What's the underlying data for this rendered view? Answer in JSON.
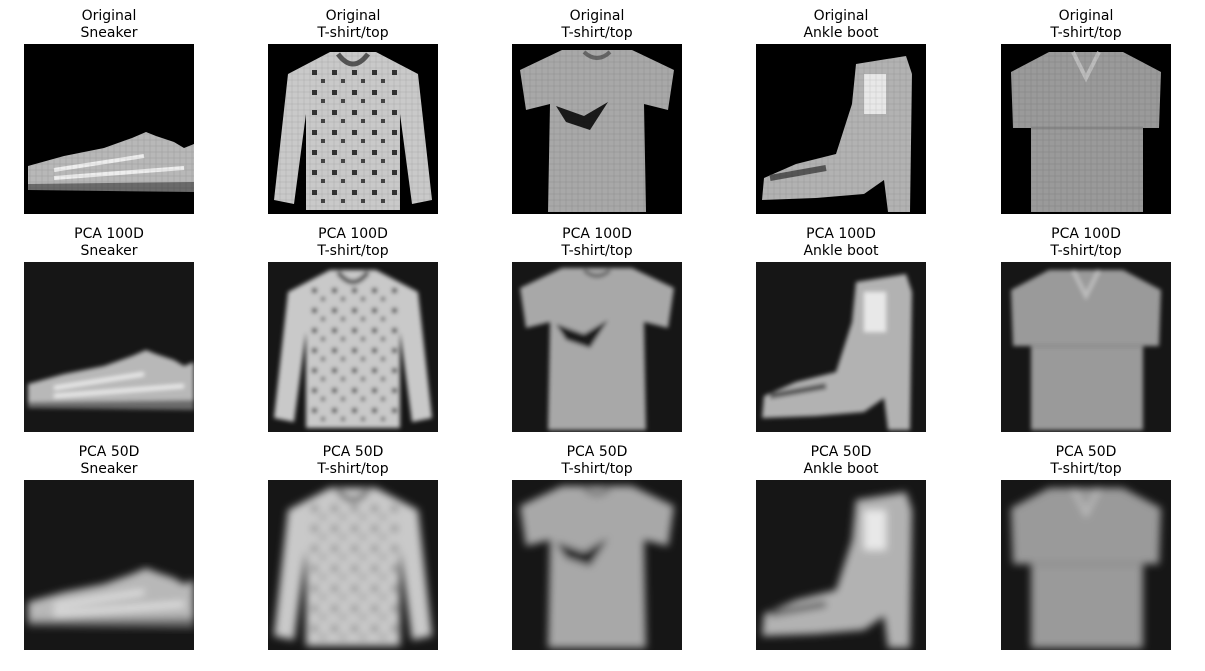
{
  "figure": {
    "rows": [
      {
        "method": "Original",
        "cells": [
          {
            "label": "Sneaker",
            "icon": "sneaker-image",
            "style": "sharp"
          },
          {
            "label": "T-shirt/top",
            "icon": "longsleeve-shirt-image",
            "style": "sharp"
          },
          {
            "label": "T-shirt/top",
            "icon": "tshirt-image",
            "style": "sharp"
          },
          {
            "label": "Ankle boot",
            "icon": "ankle-boot-image",
            "style": "sharp"
          },
          {
            "label": "T-shirt/top",
            "icon": "polo-shirt-image",
            "style": "sharp"
          }
        ]
      },
      {
        "method": "PCA 100D",
        "cells": [
          {
            "label": "Sneaker",
            "icon": "sneaker-image",
            "style": "blur-medium"
          },
          {
            "label": "T-shirt/top",
            "icon": "longsleeve-shirt-image",
            "style": "blur-medium"
          },
          {
            "label": "T-shirt/top",
            "icon": "tshirt-image",
            "style": "blur-medium"
          },
          {
            "label": "Ankle boot",
            "icon": "ankle-boot-image",
            "style": "blur-medium"
          },
          {
            "label": "T-shirt/top",
            "icon": "polo-shirt-image",
            "style": "blur-medium"
          }
        ]
      },
      {
        "method": "PCA 50D",
        "cells": [
          {
            "label": "Sneaker",
            "icon": "sneaker-image",
            "style": "blur-strong"
          },
          {
            "label": "T-shirt/top",
            "icon": "longsleeve-shirt-image",
            "style": "blur-strong"
          },
          {
            "label": "T-shirt/top",
            "icon": "tshirt-image",
            "style": "blur-strong"
          },
          {
            "label": "Ankle boot",
            "icon": "ankle-boot-image",
            "style": "blur-strong"
          },
          {
            "label": "T-shirt/top",
            "icon": "polo-shirt-image",
            "style": "blur-strong"
          }
        ]
      }
    ]
  }
}
